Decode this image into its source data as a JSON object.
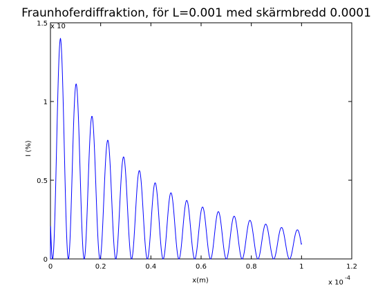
{
  "chart_data": {
    "type": "line",
    "title": "Fraunhoferdiffraktion, för L=0.001 med skärmbredd 0.0001",
    "xlabel": "x(m)",
    "ylabel": "I (%)",
    "x_exponent_label": "x 10",
    "x_exponent": "-4",
    "y_exponent_label": "x 10",
    "xlim": [
      0,
      1.2
    ],
    "ylim": [
      0,
      1.5
    ],
    "xticks": [
      "0",
      "0.2",
      "0.4",
      "0.6",
      "0.8",
      "1",
      "1.2"
    ],
    "yticks": [
      "0",
      "0.5",
      "1",
      "1.5"
    ],
    "grid": false,
    "series": [
      {
        "color": "#0000ff",
        "x_range": [
          0,
          1.0
        ],
        "oscillation_period": 0.0629,
        "peaks": [
          {
            "x": 0.04,
            "y": 1.4
          },
          {
            "x": 0.1,
            "y": 1.12
          },
          {
            "x": 0.16,
            "y": 0.92
          },
          {
            "x": 0.225,
            "y": 0.76
          },
          {
            "x": 0.29,
            "y": 0.65
          },
          {
            "x": 0.355,
            "y": 0.56
          },
          {
            "x": 0.42,
            "y": 0.48
          },
          {
            "x": 0.48,
            "y": 0.42
          },
          {
            "x": 0.545,
            "y": 0.37
          },
          {
            "x": 0.605,
            "y": 0.33
          },
          {
            "x": 0.67,
            "y": 0.3
          },
          {
            "x": 0.735,
            "y": 0.27
          },
          {
            "x": 0.795,
            "y": 0.245
          },
          {
            "x": 0.86,
            "y": 0.22
          },
          {
            "x": 0.92,
            "y": 0.2
          },
          {
            "x": 0.98,
            "y": 0.185
          }
        ],
        "end_value": 0.1
      }
    ]
  }
}
